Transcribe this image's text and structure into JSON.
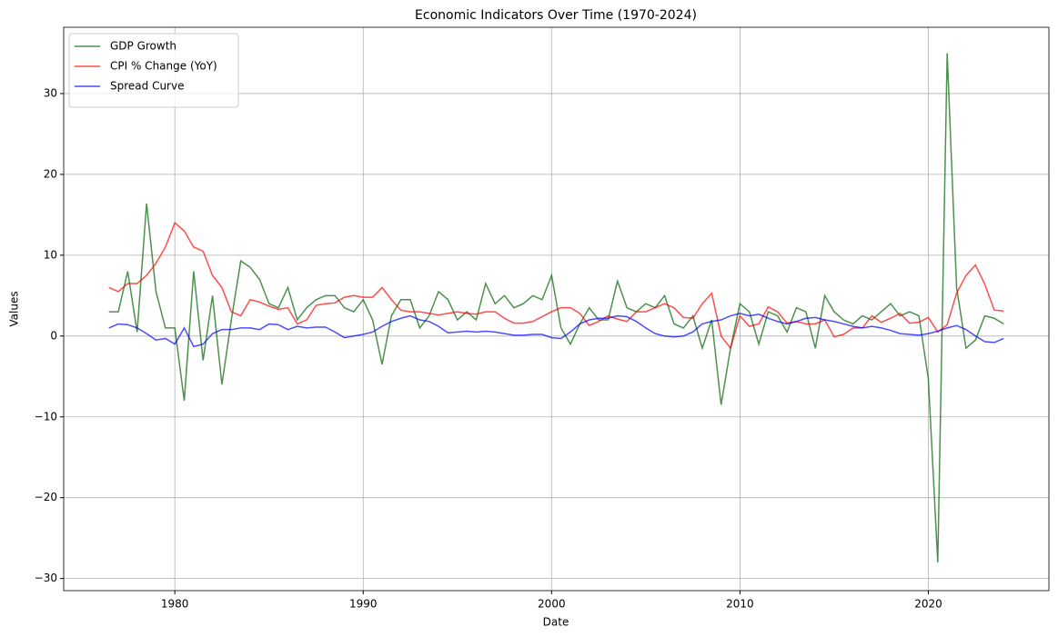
{
  "chart_data": {
    "type": "line",
    "title": "Economic Indicators Over Time (1970-2024)",
    "xlabel": "Date",
    "ylabel": "Values",
    "x": [
      1976.5,
      1977,
      1977.5,
      1978,
      1978.5,
      1979,
      1979.5,
      1980,
      1980.5,
      1981,
      1981.5,
      1982,
      1982.5,
      1983,
      1983.5,
      1984,
      1984.5,
      1985,
      1985.5,
      1986,
      1986.5,
      1987,
      1987.5,
      1988,
      1988.5,
      1989,
      1989.5,
      1990,
      1990.5,
      1991,
      1991.5,
      1992,
      1992.5,
      1993,
      1993.5,
      1994,
      1994.5,
      1995,
      1995.5,
      1996,
      1996.5,
      1997,
      1997.5,
      1998,
      1998.5,
      1999,
      1999.5,
      2000,
      2000.5,
      2001,
      2001.5,
      2002,
      2002.5,
      2003,
      2003.5,
      2004,
      2004.5,
      2005,
      2005.5,
      2006,
      2006.5,
      2007,
      2007.5,
      2008,
      2008.5,
      2009,
      2009.5,
      2010,
      2010.5,
      2011,
      2011.5,
      2012,
      2012.5,
      2013,
      2013.5,
      2014,
      2014.5,
      2015,
      2015.5,
      2016,
      2016.5,
      2017,
      2017.5,
      2018,
      2018.5,
      2019,
      2019.5,
      2020,
      2020.5,
      2021,
      2021.5,
      2022,
      2022.5,
      2023,
      2023.5,
      2024
    ],
    "series": [
      {
        "name": "GDP Growth",
        "color": "darkgreen",
        "values": [
          3,
          3,
          8,
          0.5,
          16.4,
          5.5,
          1,
          1,
          -8,
          8,
          -3,
          5,
          -6,
          2,
          9.3,
          8.5,
          7,
          4,
          3.5,
          6,
          2,
          3.5,
          4.5,
          5,
          5,
          3.5,
          3,
          4.5,
          2,
          -3.5,
          2.5,
          4.5,
          4.5,
          1,
          2.5,
          5.5,
          4.5,
          2,
          3,
          2,
          6.5,
          4,
          5,
          3.5,
          4,
          5,
          4.5,
          7.5,
          1,
          -1,
          1.5,
          3.5,
          2,
          2,
          6.8,
          3.5,
          3,
          4,
          3.5,
          5,
          1.5,
          1,
          2.5,
          -1.5,
          2,
          -8.5,
          -1.5,
          4,
          3,
          -1,
          3,
          2.5,
          0.5,
          3.5,
          3,
          -1.5,
          5,
          3,
          2,
          1.5,
          2.5,
          2,
          3,
          4,
          2.5,
          3,
          2.5,
          -5.3,
          -28,
          35,
          6,
          -1.5,
          -0.5,
          2.5,
          2.2,
          1.5
        ]
      },
      {
        "name": "CPI % Change (YoY)",
        "color": "red",
        "values": [
          6,
          5.5,
          6.5,
          6.5,
          7.5,
          9,
          11,
          14,
          13,
          11,
          10.5,
          7.5,
          6,
          3,
          2.5,
          4.5,
          4.2,
          3.7,
          3.3,
          3.5,
          1.5,
          2,
          3.8,
          4,
          4.1,
          4.8,
          5,
          4.8,
          4.8,
          6,
          4.5,
          3.2,
          3,
          3,
          2.8,
          2.6,
          2.8,
          3,
          2.8,
          2.7,
          3,
          3,
          2.2,
          1.6,
          1.6,
          1.8,
          2.4,
          3,
          3.5,
          3.5,
          2.8,
          1.3,
          1.8,
          2.5,
          2.1,
          1.8,
          3,
          3,
          3.5,
          4,
          3.5,
          2.3,
          2.2,
          4,
          5.3,
          0,
          -1.5,
          2.5,
          1.2,
          1.5,
          3.6,
          3,
          1.6,
          1.8,
          1.5,
          1.5,
          2,
          -0.1,
          0.2,
          1,
          1,
          2.5,
          1.7,
          2.2,
          2.8,
          1.6,
          1.7,
          2.3,
          0.5,
          1.4,
          5.3,
          7.5,
          8.8,
          6.4,
          3.2,
          3.1
        ]
      },
      {
        "name": "Spread Curve",
        "color": "blue",
        "values": [
          1,
          1.5,
          1.4,
          1,
          0.3,
          -0.5,
          -0.3,
          -1,
          1,
          -1.3,
          -1,
          0.3,
          0.8,
          0.8,
          1,
          1,
          0.8,
          1.5,
          1.4,
          0.8,
          1.2,
          1,
          1.1,
          1.1,
          0.5,
          -0.2,
          0,
          0.2,
          0.5,
          1.2,
          1.8,
          2.2,
          2.5,
          2,
          1.8,
          1.2,
          0.4,
          0.5,
          0.6,
          0.5,
          0.6,
          0.5,
          0.3,
          0.1,
          0.1,
          0.2,
          0.2,
          -0.2,
          -0.3,
          0.5,
          1.5,
          2,
          2.2,
          2.2,
          2.5,
          2.4,
          1.8,
          1,
          0.3,
          0,
          -0.1,
          0,
          0.5,
          1.5,
          1.8,
          2,
          2.5,
          2.8,
          2.5,
          2.7,
          2.2,
          1.8,
          1.5,
          1.8,
          2.2,
          2.3,
          2,
          1.8,
          1.5,
          1.2,
          1,
          1.2,
          1,
          0.7,
          0.3,
          0.2,
          0.1,
          0.3,
          0.6,
          1,
          1.3,
          0.8,
          0,
          -0.7,
          -0.8,
          -0.3
        ]
      }
    ],
    "alpha": 0.7,
    "xlim": [
      1974.1,
      2026.4
    ],
    "xticks": [
      1980,
      1990,
      2000,
      2010,
      2020
    ],
    "ylim": [
      -31.5,
      38.2
    ],
    "yticks": [
      {
        "value": -30,
        "label": "−30"
      },
      {
        "value": -20,
        "label": "−20"
      },
      {
        "value": -10,
        "label": "−10"
      },
      0,
      10,
      20,
      30
    ],
    "grid": true,
    "legend": "upper left"
  }
}
